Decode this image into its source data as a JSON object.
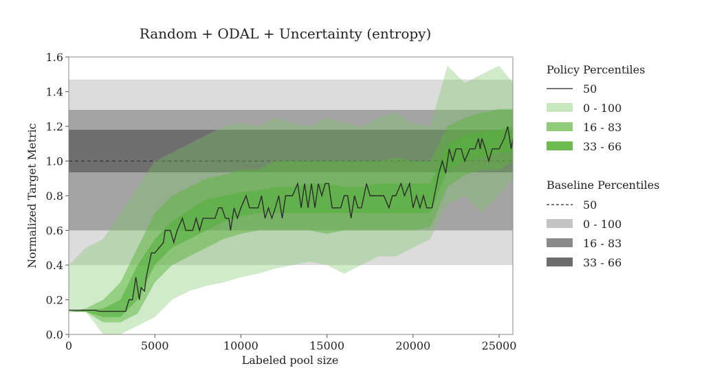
{
  "chart_data": {
    "type": "area",
    "title": "Random + ODAL + Uncertainty (entropy)",
    "xlabel": "Labeled pool size",
    "ylabel": "Normalized Target Metric",
    "xlim": [
      0,
      25800
    ],
    "ylim": [
      0,
      1.6
    ],
    "xticks": [
      0,
      5000,
      10000,
      15000,
      20000,
      25000
    ],
    "xtick_labels": [
      "0",
      "5000",
      "10000",
      "15000",
      "20000",
      "25000"
    ],
    "yticks": [
      0,
      0.2,
      0.4,
      0.6,
      0.8,
      1.0,
      1.2,
      1.4,
      1.6
    ],
    "ytick_labels": [
      "0.0",
      "0.2",
      "0.4",
      "0.6",
      "0.8",
      "1.0",
      "1.2",
      "1.4",
      "1.6"
    ],
    "grid": false,
    "legend_placement": "right, outside",
    "colors": {
      "baseline_0_100": "#dcdcdc",
      "baseline_16_83": "#a4a4a4",
      "baseline_33_66": "#6e6e6e",
      "policy_0_100": "#c8e6c0",
      "policy_16_83": "#8fcc7a",
      "policy_33_66": "#6dbb4f",
      "median": "#2b2b2b"
    },
    "baseline": {
      "median": 1.0,
      "p0_100": [
        0.4,
        1.47
      ],
      "p16_83": [
        0.6,
        1.295
      ],
      "p33_66": [
        0.935,
        1.18
      ]
    },
    "policy": {
      "band_x": [
        0,
        1000,
        2000,
        3000,
        4000,
        5000,
        6000,
        7000,
        8000,
        9000,
        10000,
        11000,
        12000,
        13000,
        14000,
        15000,
        16000,
        17000,
        18000,
        19000,
        20000,
        21000,
        22000,
        23000,
        24000,
        25000,
        25800
      ],
      "p0_100_lower": [
        0.13,
        0.13,
        0.0,
        0.0,
        0.05,
        0.1,
        0.2,
        0.25,
        0.28,
        0.3,
        0.33,
        0.35,
        0.38,
        0.4,
        0.42,
        0.4,
        0.35,
        0.4,
        0.45,
        0.45,
        0.5,
        0.55,
        0.75,
        0.8,
        0.7,
        0.8,
        0.9
      ],
      "p0_100_upper": [
        0.4,
        0.5,
        0.55,
        0.7,
        0.85,
        1.0,
        1.05,
        1.1,
        1.15,
        1.2,
        1.22,
        1.2,
        1.25,
        1.22,
        1.2,
        1.25,
        1.22,
        1.2,
        1.25,
        1.28,
        1.22,
        1.2,
        1.55,
        1.45,
        1.5,
        1.55,
        1.45
      ],
      "p16_83_lower": [
        0.13,
        0.13,
        0.07,
        0.07,
        0.12,
        0.3,
        0.4,
        0.45,
        0.5,
        0.55,
        0.58,
        0.6,
        0.6,
        0.6,
        0.6,
        0.58,
        0.6,
        0.6,
        0.6,
        0.6,
        0.6,
        0.62,
        0.85,
        0.92,
        0.95,
        0.95,
        1.0
      ],
      "p16_83_upper": [
        0.13,
        0.15,
        0.2,
        0.3,
        0.5,
        0.7,
        0.8,
        0.85,
        0.9,
        0.92,
        0.95,
        0.95,
        1.0,
        1.0,
        1.0,
        1.0,
        1.0,
        1.0,
        1.0,
        1.02,
        1.0,
        1.0,
        1.2,
        1.25,
        1.28,
        1.3,
        1.3
      ],
      "p33_66_lower": [
        0.13,
        0.13,
        0.1,
        0.1,
        0.2,
        0.4,
        0.5,
        0.55,
        0.6,
        0.65,
        0.68,
        0.7,
        0.7,
        0.7,
        0.7,
        0.7,
        0.7,
        0.7,
        0.7,
        0.7,
        0.7,
        0.7,
        0.95,
        1.0,
        1.02,
        1.05,
        1.05
      ],
      "p33_66_upper": [
        0.13,
        0.14,
        0.15,
        0.2,
        0.4,
        0.55,
        0.65,
        0.72,
        0.78,
        0.8,
        0.82,
        0.83,
        0.85,
        0.85,
        0.87,
        0.87,
        0.85,
        0.85,
        0.87,
        0.87,
        0.87,
        0.87,
        1.1,
        1.15,
        1.17,
        1.18,
        1.2
      ],
      "median_x": [
        0,
        1500,
        1800,
        3300,
        3500,
        3700,
        3900,
        4100,
        4200,
        4400,
        4500,
        4800,
        5000,
        5500,
        5600,
        5900,
        6100,
        6300,
        6600,
        6800,
        7200,
        7400,
        7600,
        7800,
        8500,
        8700,
        8900,
        9100,
        9300,
        9400,
        9600,
        9800,
        10000,
        10300,
        10500,
        11000,
        11200,
        11400,
        11600,
        11800,
        12000,
        12200,
        12400,
        12600,
        13000,
        13300,
        13500,
        13700,
        13900,
        14100,
        14300,
        14500,
        14700,
        14900,
        15100,
        15300,
        15800,
        16000,
        16200,
        16400,
        16600,
        16800,
        17000,
        17300,
        17500,
        18000,
        18300,
        18600,
        18800,
        19000,
        19300,
        19500,
        19800,
        20000,
        20200,
        20400,
        20600,
        20800,
        21100,
        21500,
        21700,
        21900,
        22100,
        22300,
        22500,
        22800,
        23000,
        23300,
        23600,
        23800,
        23900,
        24000,
        24200,
        24400,
        24600,
        25000,
        25300,
        25500,
        25700,
        25800
      ],
      "median_y": [
        0.14,
        0.14,
        0.133,
        0.133,
        0.2,
        0.2,
        0.33,
        0.2,
        0.27,
        0.25,
        0.33,
        0.47,
        0.47,
        0.53,
        0.6,
        0.6,
        0.53,
        0.6,
        0.67,
        0.6,
        0.6,
        0.67,
        0.6,
        0.67,
        0.67,
        0.73,
        0.73,
        0.67,
        0.67,
        0.6,
        0.73,
        0.67,
        0.73,
        0.8,
        0.73,
        0.73,
        0.8,
        0.67,
        0.73,
        0.67,
        0.73,
        0.8,
        0.67,
        0.8,
        0.8,
        0.87,
        0.73,
        0.87,
        0.73,
        0.87,
        0.73,
        0.87,
        0.8,
        0.87,
        0.87,
        0.73,
        0.73,
        0.8,
        0.8,
        0.67,
        0.8,
        0.73,
        0.73,
        0.87,
        0.8,
        0.8,
        0.8,
        0.73,
        0.8,
        0.8,
        0.87,
        0.8,
        0.87,
        0.73,
        0.8,
        0.73,
        0.8,
        0.73,
        0.73,
        0.93,
        1.0,
        0.93,
        1.07,
        1.0,
        1.07,
        1.07,
        1.0,
        1.07,
        1.07,
        1.13,
        1.07,
        1.13,
        1.07,
        1.0,
        1.07,
        1.07,
        1.13,
        1.2,
        1.07,
        1.13
      ]
    },
    "legend": {
      "policy_title": "Policy Percentiles",
      "policy_items": [
        "50",
        "0 - 100",
        "16 - 83",
        "33 - 66"
      ],
      "baseline_title": "Baseline Percentiles",
      "baseline_items": [
        "50",
        "0 - 100",
        "16 - 83",
        "33 - 66"
      ]
    }
  }
}
